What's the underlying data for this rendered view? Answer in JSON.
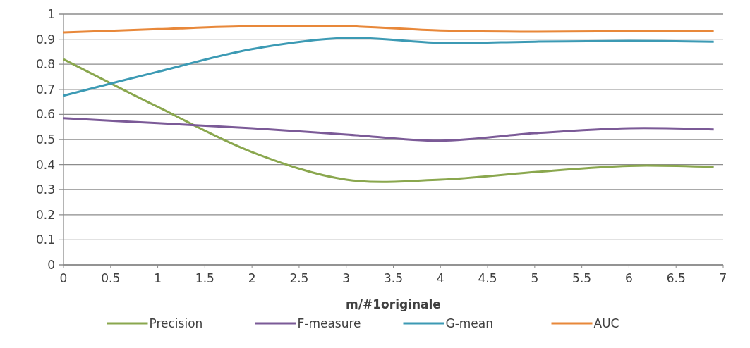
{
  "chart_data": {
    "type": "line",
    "xlabel": "m/#1originale",
    "xlim": [
      0,
      7
    ],
    "xticks": [
      0,
      0.5,
      1,
      1.5,
      2,
      2.5,
      3,
      3.5,
      4,
      4.5,
      5,
      5.5,
      6,
      6.5,
      7
    ],
    "ylim": [
      0,
      1
    ],
    "yticks": [
      0,
      0.1,
      0.2,
      0.3,
      0.4,
      0.5,
      0.6,
      0.7,
      0.8,
      0.9,
      1
    ],
    "grid": "y",
    "legend": "bottom",
    "marker": "none",
    "line_style": "solid",
    "x": [
      0,
      1,
      2,
      3,
      4,
      5,
      6,
      6.9
    ],
    "series": [
      {
        "name": "Precision",
        "color": "#8aa74e",
        "values": [
          0.82,
          0.63,
          0.45,
          0.34,
          0.34,
          0.37,
          0.395,
          0.39
        ]
      },
      {
        "name": "F-measure",
        "color": "#7b5a97",
        "values": [
          0.585,
          0.565,
          0.545,
          0.52,
          0.495,
          0.525,
          0.545,
          0.54
        ]
      },
      {
        "name": "G-mean",
        "color": "#3c9ab4",
        "values": [
          0.675,
          0.77,
          0.86,
          0.905,
          0.885,
          0.89,
          0.893,
          0.89
        ]
      },
      {
        "name": "AUC",
        "color": "#e8883a",
        "values": [
          0.927,
          0.94,
          0.952,
          0.952,
          0.935,
          0.93,
          0.932,
          0.933
        ]
      }
    ]
  }
}
